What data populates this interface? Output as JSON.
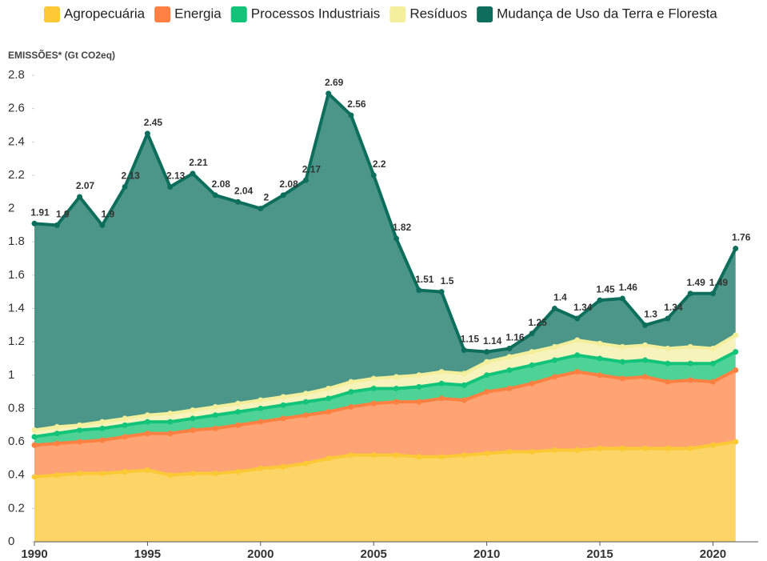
{
  "chart_data": {
    "type": "area",
    "y_axis_label": "EMISSÕES* (Gt CO2eq)",
    "x": [
      1990,
      1991,
      1992,
      1993,
      1994,
      1995,
      1996,
      1997,
      1998,
      1999,
      2000,
      2001,
      2002,
      2003,
      2004,
      2005,
      2006,
      2007,
      2008,
      2009,
      2010,
      2011,
      2012,
      2013,
      2014,
      2015,
      2016,
      2017,
      2018,
      2019,
      2020,
      2021
    ],
    "xlim": [
      1990,
      2022
    ],
    "xticks": [
      1990,
      1995,
      2000,
      2005,
      2010,
      2015,
      2020
    ],
    "ylim": [
      0,
      2.8
    ],
    "yticks": [
      0,
      0.2,
      0.4,
      0.6,
      0.8,
      1,
      1.2,
      1.4,
      1.6,
      1.8,
      2,
      2.2,
      2.4,
      2.6,
      2.8
    ],
    "grid": false,
    "legend": "top",
    "series": [
      {
        "name": "Agropecuária",
        "color": "#fcc936",
        "fill": "#fdd466",
        "values": [
          0.39,
          0.4,
          0.41,
          0.41,
          0.42,
          0.43,
          0.4,
          0.41,
          0.41,
          0.42,
          0.44,
          0.45,
          0.47,
          0.5,
          0.52,
          0.52,
          0.52,
          0.51,
          0.51,
          0.52,
          0.53,
          0.54,
          0.54,
          0.55,
          0.55,
          0.56,
          0.56,
          0.56,
          0.56,
          0.56,
          0.58,
          0.6
        ]
      },
      {
        "name": "Energia",
        "color": "#ff8040",
        "fill": "#fea474",
        "values": [
          0.58,
          0.59,
          0.6,
          0.61,
          0.63,
          0.65,
          0.65,
          0.67,
          0.68,
          0.7,
          0.72,
          0.74,
          0.76,
          0.78,
          0.81,
          0.83,
          0.84,
          0.84,
          0.86,
          0.85,
          0.9,
          0.92,
          0.95,
          0.99,
          1.02,
          1.0,
          0.98,
          0.99,
          0.96,
          0.97,
          0.96,
          1.03
        ]
      },
      {
        "name": "Processos Industriais",
        "color": "#12c47a",
        "fill": "#4fd296",
        "values": [
          0.63,
          0.65,
          0.67,
          0.68,
          0.7,
          0.72,
          0.72,
          0.74,
          0.76,
          0.78,
          0.8,
          0.82,
          0.84,
          0.86,
          0.9,
          0.92,
          0.92,
          0.93,
          0.95,
          0.94,
          1.0,
          1.03,
          1.06,
          1.09,
          1.12,
          1.1,
          1.08,
          1.09,
          1.07,
          1.07,
          1.07,
          1.14
        ]
      },
      {
        "name": "Resíduos",
        "color": "#f3ef9c",
        "fill": "#f6f3bd",
        "values": [
          0.67,
          0.69,
          0.7,
          0.72,
          0.74,
          0.76,
          0.77,
          0.79,
          0.81,
          0.83,
          0.85,
          0.87,
          0.89,
          0.92,
          0.96,
          0.98,
          0.99,
          1.0,
          1.02,
          1.01,
          1.08,
          1.11,
          1.14,
          1.17,
          1.21,
          1.19,
          1.17,
          1.18,
          1.16,
          1.17,
          1.16,
          1.24
        ]
      },
      {
        "name": "Mudança de Uso da Terra e Floresta",
        "color": "#0e6e5c",
        "fill": "#4b9689",
        "labels": true,
        "values": [
          1.91,
          1.9,
          2.07,
          1.9,
          2.13,
          2.45,
          2.13,
          2.21,
          2.08,
          2.04,
          2,
          2.08,
          2.17,
          2.69,
          2.56,
          2.2,
          1.82,
          1.51,
          1.5,
          1.15,
          1.14,
          1.16,
          1.25,
          1.4,
          1.34,
          1.45,
          1.46,
          1.3,
          1.34,
          1.49,
          1.49,
          1.76
        ]
      }
    ]
  }
}
